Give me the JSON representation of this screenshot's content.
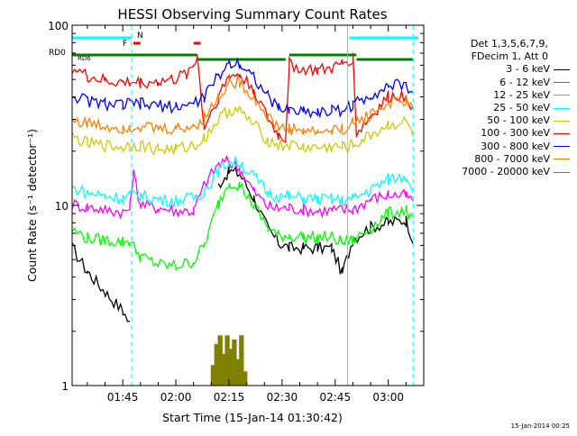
{
  "chart_data": {
    "type": "line",
    "title": "HESSI Observing Summary Count Rates",
    "xlabel": "Start Time (15-Jan-14 01:30:42)",
    "ylabel": "Count Rate (s⁻¹ detector⁻¹)",
    "y_scale": "log",
    "ylim": [
      1,
      100
    ],
    "xlim": [
      "01:30:42",
      "03:10:00"
    ],
    "x_ticks": [
      "01:45",
      "02:00",
      "02:15",
      "02:30",
      "02:45",
      "03:00"
    ],
    "y_ticks": [
      "1",
      "10",
      "100"
    ],
    "legend": {
      "header": [
        "Det 1,3,5,6,7,9,",
        "FDecim 1, Att 0"
      ],
      "position": "right-outside"
    },
    "annotations": {
      "flags": [
        {
          "label": "N",
          "color": "#00ffff"
        },
        {
          "label": "F",
          "color": "#ff0000"
        },
        {
          "label": "RD0",
          "color": "#008000"
        },
        {
          "label": "RD6",
          "color": "#008000"
        }
      ],
      "flag_bars": [
        {
          "name": "N",
          "color": "#00ffff",
          "segments": [
            [
              "01:30:42",
              "01:47:30"
            ],
            [
              "02:49:00",
              "03:08:30"
            ]
          ]
        },
        {
          "name": "F",
          "color": "#ff0000",
          "segments": [
            [
              "01:48:00",
              "01:50:00"
            ],
            [
              "02:05:00",
              "02:07:00"
            ]
          ]
        },
        {
          "name": "RD0",
          "color": "#008000",
          "segments": [
            [
              "01:30:42",
              "02:06:00"
            ],
            [
              "02:06:00",
              "02:31:00"
            ],
            [
              "02:32:00",
              "02:51:00"
            ],
            [
              "02:51:00",
              "03:07:00"
            ]
          ]
        }
      ],
      "vertical_lines": [
        {
          "time": "01:47:30",
          "style": "dashed",
          "color": "#00ffff"
        },
        {
          "time": "02:48:30",
          "style": "solid",
          "color": "#00ffff"
        },
        {
          "time": "03:07:00",
          "style": "dashed",
          "color": "#00ffff"
        }
      ],
      "timestamp": "15-Jan-2014 00:25"
    },
    "series": [
      {
        "name": "3 - 6 keV",
        "color": "#000000",
        "x": [
          "01:30:42",
          "01:35",
          "01:40",
          "01:45",
          "01:47",
          "01:50",
          "01:55",
          "02:00",
          "02:05",
          "02:08",
          "02:12",
          "02:15",
          "02:18",
          "02:22",
          "02:26",
          "02:29",
          "02:32",
          "02:36",
          "02:40",
          "02:44",
          "02:47",
          "02:50",
          "02:55",
          "03:00",
          "03:05",
          "03:07"
        ],
        "y": [
          5.8,
          4.3,
          3.3,
          2.6,
          2.2,
          null,
          null,
          null,
          null,
          null,
          13,
          15.5,
          15,
          11,
          7.4,
          6.2,
          5.8,
          5.8,
          5.8,
          5.8,
          4.2,
          6.5,
          7.6,
          8,
          8.3,
          6.5
        ]
      },
      {
        "name": "6 - 12 keV",
        "color": "#ff00ff",
        "x": [
          "01:30:42",
          "01:35",
          "01:40",
          "01:45",
          "01:47",
          "01:48",
          "01:50",
          "01:55",
          "02:00",
          "02:05",
          "02:08",
          "02:12",
          "02:15",
          "02:18",
          "02:22",
          "02:26",
          "02:29",
          "02:32",
          "02:36",
          "02:40",
          "02:44",
          "02:47",
          "02:50",
          "02:55",
          "03:00",
          "03:05",
          "03:07"
        ],
        "y": [
          10.2,
          9.8,
          9.5,
          9.2,
          9.6,
          15,
          10.1,
          9.7,
          9.4,
          9.3,
          13,
          17,
          17.5,
          16,
          12,
          9.8,
          9.6,
          9.7,
          9.5,
          9.3,
          9.4,
          9.4,
          9.5,
          10.8,
          11.5,
          11.3,
          10.5
        ]
      },
      {
        "name": "12 - 25 keV",
        "color": "#00ff00",
        "x": [
          "01:30:42",
          "01:35",
          "01:40",
          "01:45",
          "01:47",
          "01:50",
          "01:55",
          "02:00",
          "02:05",
          "02:08",
          "02:12",
          "02:15",
          "02:18",
          "02:22",
          "02:26",
          "02:29",
          "02:32",
          "02:36",
          "02:40",
          "02:44",
          "02:47",
          "02:50",
          "02:55",
          "03:00",
          "03:05",
          "03:07"
        ],
        "y": [
          7.3,
          6.6,
          6.4,
          6.3,
          6.3,
          5.2,
          4.7,
          4.6,
          4.9,
          6,
          10.2,
          13.5,
          13,
          10,
          7.5,
          6.8,
          6.8,
          6.7,
          6.6,
          6.7,
          6.2,
          6.4,
          7.5,
          9,
          9.5,
          8
        ]
      },
      {
        "name": "25 - 50 keV",
        "color": "#00ffff",
        "x": [
          "01:30:42",
          "01:35",
          "01:40",
          "01:45",
          "01:47",
          "01:50",
          "01:55",
          "02:00",
          "02:05",
          "02:08",
          "02:12",
          "02:15",
          "02:18",
          "02:22",
          "02:26",
          "02:29",
          "02:32",
          "02:36",
          "02:40",
          "02:44",
          "02:47",
          "02:50",
          "02:55",
          "03:00",
          "03:05",
          "03:07"
        ],
        "y": [
          12.5,
          11.8,
          11.3,
          11,
          11.4,
          11.4,
          10.8,
          10.7,
          11,
          12,
          15.5,
          17.5,
          17.2,
          14.5,
          11.7,
          11.2,
          11.1,
          11,
          10.8,
          10.8,
          10.6,
          10.9,
          12.2,
          14,
          14.5,
          12.5
        ]
      },
      {
        "name": "50 - 100 keV",
        "color": "#cccc00",
        "x": [
          "01:30:42",
          "01:35",
          "01:40",
          "01:45",
          "01:47",
          "01:50",
          "01:55",
          "02:00",
          "02:05",
          "02:08",
          "02:12",
          "02:15",
          "02:18",
          "02:22",
          "02:26",
          "02:29",
          "02:32",
          "02:36",
          "02:40",
          "02:44",
          "02:47",
          "02:50",
          "02:55",
          "03:00",
          "03:05",
          "03:07"
        ],
        "y": [
          24,
          22,
          21.5,
          21,
          21.5,
          21.5,
          20.5,
          20.5,
          21.5,
          23.5,
          30,
          34,
          33.5,
          28,
          23,
          21.5,
          21.5,
          21,
          20.8,
          21,
          21,
          21.5,
          24.5,
          28,
          29,
          25
        ]
      },
      {
        "name": "100 - 300 keV",
        "color": "#ff0000",
        "x": [
          "01:30:42",
          "01:35",
          "01:40",
          "01:45",
          "01:47",
          "01:50",
          "01:55",
          "02:00",
          "02:03",
          "02:05",
          "02:06",
          "02:08",
          "02:12",
          "02:15",
          "02:18",
          "02:22",
          "02:26",
          "02:29",
          "02:31",
          "02:32",
          "02:36",
          "02:40",
          "02:44",
          "02:47",
          "02:50",
          "02:51",
          "02:55",
          "03:00",
          "03:05",
          "03:07"
        ],
        "y": [
          58,
          52,
          49,
          48,
          48,
          48,
          48.5,
          50,
          54,
          60,
          68,
          27,
          40,
          52,
          53,
          44,
          30,
          24.5,
          23.5,
          61,
          57,
          56,
          57,
          61,
          66,
          25,
          31,
          40,
          41,
          35
        ]
      },
      {
        "name": "300 - 800 keV",
        "color": "#0000ff",
        "x": [
          "01:30:42",
          "01:35",
          "01:40",
          "01:45",
          "01:47",
          "01:50",
          "01:55",
          "02:00",
          "02:05",
          "02:08",
          "02:12",
          "02:15",
          "02:18",
          "02:22",
          "02:26",
          "02:29",
          "02:32",
          "02:36",
          "02:40",
          "02:44",
          "02:47",
          "02:50",
          "02:55",
          "03:00",
          "03:05",
          "03:07"
        ],
        "y": [
          41,
          38,
          36.5,
          36,
          36.5,
          36.5,
          35.5,
          35.5,
          36.5,
          40,
          52,
          62,
          62,
          52,
          40,
          34.5,
          34,
          33.5,
          33,
          33.5,
          34,
          36,
          41,
          46,
          46.5,
          42
        ]
      },
      {
        "name": "800 - 7000 keV",
        "color": "#ff8000",
        "x": [
          "01:30:42",
          "01:35",
          "01:40",
          "01:45",
          "01:47",
          "01:50",
          "01:55",
          "02:00",
          "02:05",
          "02:08",
          "02:12",
          "02:15",
          "02:18",
          "02:22",
          "02:26",
          "02:29",
          "02:32",
          "02:36",
          "02:40",
          "02:44",
          "02:47",
          "02:50",
          "02:55",
          "03:00",
          "03:05",
          "03:07"
        ],
        "y": [
          30,
          28.5,
          27.5,
          27,
          27.5,
          27.5,
          26.5,
          26.5,
          27.5,
          30.5,
          40,
          48,
          48,
          40,
          31,
          27,
          26.5,
          26,
          25.5,
          26,
          26.5,
          28.5,
          32,
          37,
          38,
          34
        ]
      },
      {
        "name": "7000 - 20000 keV",
        "color": "#808000",
        "x": [
          "02:09",
          "02:10",
          "02:11",
          "02:12",
          "02:13",
          "02:14",
          "02:15",
          "02:16",
          "02:17",
          "02:18",
          "02:19",
          "02:20"
        ],
        "y": [
          1.0,
          1.3,
          1.7,
          1.9,
          1.5,
          1.9,
          1.6,
          1.8,
          1.4,
          1.9,
          1.2,
          1.0
        ]
      }
    ]
  }
}
